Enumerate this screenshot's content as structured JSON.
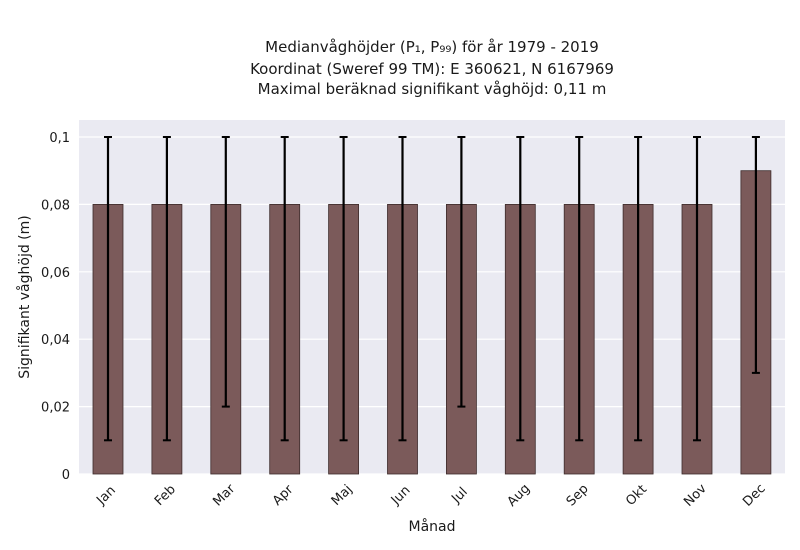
{
  "chart_data": {
    "type": "bar",
    "title_lines": [
      "Medianvåghöjder (P₁, P₉₉) för år 1979 - 2019",
      "Koordinat (Sweref 99 TM): E 360621, N 6167969",
      "Maximal beräknad signifikant våghöjd: 0,11 m"
    ],
    "xlabel": "Månad",
    "ylabel": "Signifikant våghöjd (m)",
    "categories": [
      "Jan",
      "Feb",
      "Mar",
      "Apr",
      "Maj",
      "Jun",
      "Jul",
      "Aug",
      "Sep",
      "Okt",
      "Nov",
      "Dec"
    ],
    "values": [
      0.08,
      0.08,
      0.08,
      0.08,
      0.08,
      0.08,
      0.08,
      0.08,
      0.08,
      0.08,
      0.08,
      0.09
    ],
    "p1": [
      0.01,
      0.01,
      0.02,
      0.01,
      0.01,
      0.01,
      0.02,
      0.01,
      0.01,
      0.01,
      0.01,
      0.03
    ],
    "p99": [
      0.1,
      0.1,
      0.1,
      0.1,
      0.1,
      0.1,
      0.1,
      0.1,
      0.1,
      0.1,
      0.1,
      0.1
    ],
    "ylim": [
      0,
      0.1
    ],
    "yticks": [
      0,
      0.02,
      0.04,
      0.06,
      0.08,
      0.1
    ],
    "ytick_labels": [
      "0",
      "0,02",
      "0,04",
      "0,06",
      "0,08",
      "0,1"
    ],
    "grid": true,
    "colors": {
      "bar": "#7b5a5a",
      "bar_edge": "#3d2b2b",
      "errorbar": "#000000",
      "plot_bg": "#eaeaf2",
      "grid": "#ffffff"
    }
  }
}
